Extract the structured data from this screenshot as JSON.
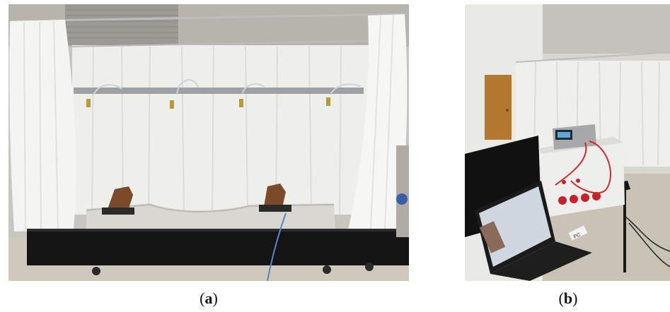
{
  "figure": {
    "panels": [
      {
        "id": "a",
        "caption_open": "(",
        "caption_letter": "a",
        "caption_close": ")"
      },
      {
        "id": "b",
        "caption_open": "(",
        "caption_letter": "b",
        "caption_close": ")"
      }
    ],
    "instrument_label": "PC",
    "colors": {
      "curtain": "#f2f2f0",
      "tank": "#141414",
      "rail": "#7a4a2a",
      "wire_red": "#d42a2a",
      "floor": "#c9c3b6"
    }
  }
}
